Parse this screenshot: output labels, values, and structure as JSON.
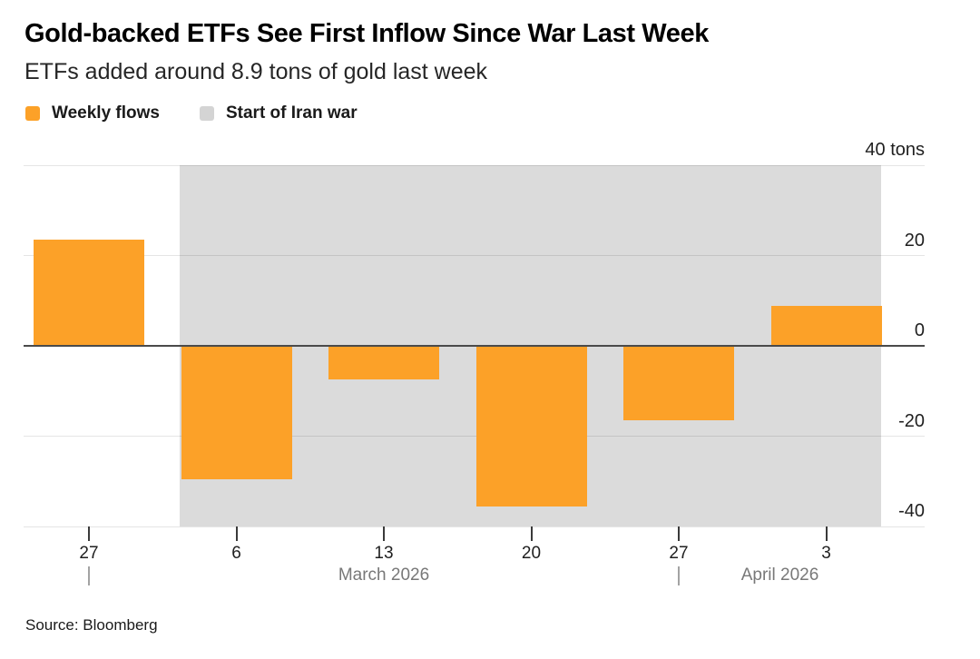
{
  "header": {
    "title": "Gold-backed ETFs See First Inflow Since War Last Week",
    "subtitle": "ETFs added around 8.9 tons of gold last week"
  },
  "legend": {
    "items": [
      {
        "label": "Weekly flows"
      },
      {
        "label": "Start of Iran war"
      }
    ]
  },
  "colors": {
    "bar_orange": "#FCA128",
    "region_gray": "#DBDBDB",
    "legend_gray": "#D4D4D4",
    "zero_line": "#4A4A4A"
  },
  "chart_data": {
    "type": "bar",
    "title": "Gold-backed ETFs See First Inflow Since War Last Week",
    "subtitle": "ETFs added around 8.9 tons of gold last week",
    "categories": [
      "27",
      "6",
      "13",
      "20",
      "27",
      "3"
    ],
    "series": [
      {
        "name": "Weekly flows",
        "values": [
          23.5,
          -29.5,
          -7.5,
          -35.5,
          -16.5,
          8.9
        ]
      }
    ],
    "unit": "tons",
    "ylabel": "tons",
    "ylim": [
      -40,
      40
    ],
    "y_ticks": [
      40,
      20,
      0,
      -20,
      -40
    ],
    "y_tick_labels": [
      "40 tons",
      "20",
      "0",
      "-20",
      "-40"
    ],
    "grid": true,
    "legend_position": "top-left",
    "shaded_region": {
      "label": "Start of Iran war",
      "from_bar_index": 1,
      "through_bar_index": 5
    },
    "month_axis": [
      {
        "separator_at_bar_index": 0,
        "label": "March 2026"
      },
      {
        "separator_at_bar_index": 4,
        "label": "April 2026"
      }
    ]
  },
  "footer": {
    "source": "Source: Bloomberg"
  }
}
